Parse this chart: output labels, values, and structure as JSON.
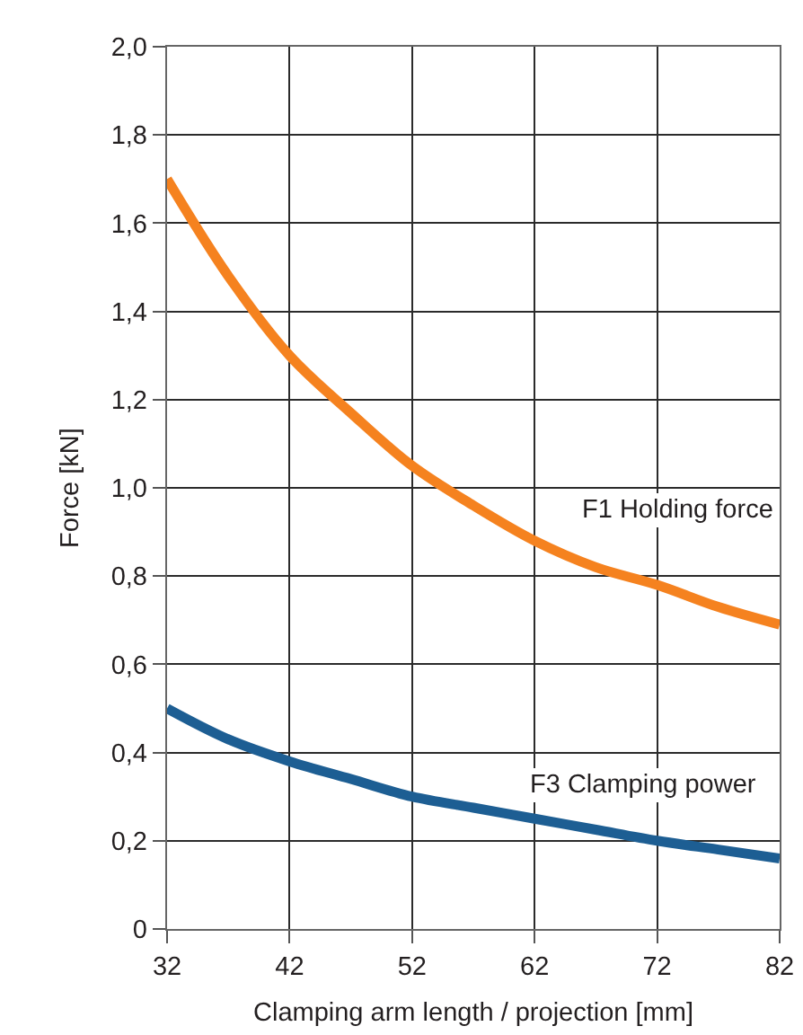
{
  "chart_data": {
    "type": "line",
    "xlabel": "Clamping arm length / projection [mm]",
    "ylabel": "Force [kN]",
    "x": [
      32,
      37,
      42,
      47,
      52,
      57,
      62,
      67,
      72,
      77,
      82
    ],
    "series": [
      {
        "name": "F1 Holding force",
        "color": "#f5821f",
        "values": [
          1.7,
          1.48,
          1.3,
          1.17,
          1.05,
          0.96,
          0.88,
          0.82,
          0.78,
          0.73,
          0.69
        ]
      },
      {
        "name": "F3 Clamping power",
        "color": "#1d5e93",
        "values": [
          0.5,
          0.43,
          0.38,
          0.34,
          0.3,
          0.275,
          0.25,
          0.225,
          0.2,
          0.18,
          0.16
        ]
      }
    ],
    "xlim": [
      32,
      82
    ],
    "xticks": [
      32,
      42,
      52,
      62,
      72,
      82
    ],
    "ylim": [
      0,
      2.0
    ],
    "yticks": [
      0,
      {
        "value": 0.2,
        "label": "0,2"
      },
      {
        "value": 0.4,
        "label": "0,4"
      },
      {
        "value": 0.6,
        "label": "0,6"
      },
      {
        "value": 0.8,
        "label": "0,8"
      },
      {
        "value": 1.0,
        "label": "1,0"
      },
      {
        "value": 1.2,
        "label": "1,2"
      },
      {
        "value": 1.4,
        "label": "1,4"
      },
      {
        "value": 1.6,
        "label": "1,6"
      },
      {
        "value": 1.8,
        "label": "1,8"
      },
      {
        "value": 2.0,
        "label": "2,0"
      }
    ],
    "grid": true,
    "legend": false,
    "line_style": "solid",
    "marker": "none"
  }
}
